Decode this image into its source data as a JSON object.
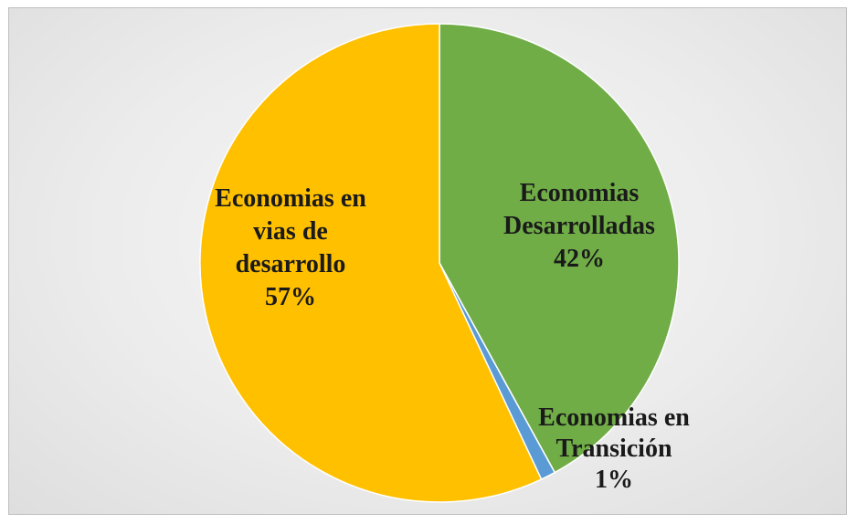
{
  "chart_data": {
    "type": "pie",
    "categories": [
      "Economias Desarrolladas",
      "Economias en Transición",
      "Economias en vias de desarrollo"
    ],
    "values": [
      42,
      1,
      57
    ],
    "unit": "%",
    "colors": [
      "#70AD47",
      "#5B9BD5",
      "#FFC000"
    ],
    "labels": [
      {
        "lines": [
          "Economias",
          "Desarrolladas",
          "42%"
        ]
      },
      {
        "lines": [
          "Economias en",
          "Transición",
          "1%"
        ]
      },
      {
        "lines": [
          "Economias en",
          "vias de",
          "desarrollo",
          "57%"
        ]
      }
    ],
    "start_angle_deg": 0,
    "direction": "clockwise",
    "legend": "none"
  }
}
